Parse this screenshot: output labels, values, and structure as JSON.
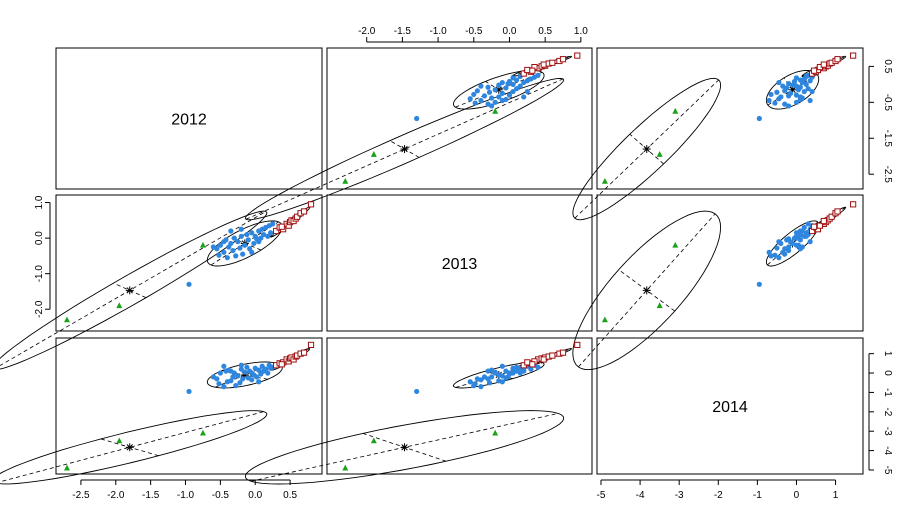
{
  "chart_data": {
    "type": "scatter",
    "variables": [
      "2012",
      "2013",
      "2014"
    ],
    "colors": {
      "group1": "#2e86de",
      "group2": "#1aa31a",
      "group3": "#a01010",
      "ellipse": "#000000"
    },
    "ranges": {
      "2012": [
        -2.8,
        0.9
      ],
      "2013": [
        -2.5,
        1.1
      ],
      "2014": [
        -5.0,
        1.6
      ]
    },
    "ticks": {
      "2012": [
        -2.5,
        -2.0,
        -1.5,
        -1.0,
        -0.5,
        0.0,
        0.5
      ],
      "2013": [
        -2.0,
        -1.5,
        -1.0,
        -0.5,
        0.0,
        0.5,
        1.0
      ],
      "2014": [
        -5,
        -4,
        -3,
        -2,
        -1,
        0,
        1
      ]
    },
    "tick_labels": {
      "2012": [
        "-2.5",
        "-2.0",
        "-1.5",
        "-1.0",
        "-0.5",
        "0.0",
        "0.5"
      ],
      "2013_top": [
        "-2.0",
        "-1.5",
        "-1.0",
        "-0.5",
        "0.0",
        "0.5",
        "1.0"
      ],
      "2013_left": [
        "-2.0",
        "-1.0",
        "0.0",
        "1.0"
      ],
      "2013_left_values": [
        -2.0,
        -1.0,
        0.0,
        1.0
      ],
      "2014": [
        "-5",
        "-4",
        "-3",
        "-2",
        "-1",
        "0",
        "1"
      ],
      "2012_right": [
        "-2.5",
        "-1.5",
        "-0.5",
        "0.5"
      ],
      "2012_right_values": [
        -2.5,
        -1.5,
        -0.5,
        0.5
      ]
    },
    "groups": [
      {
        "id": 1,
        "marker": "circle",
        "color": "#2e86de",
        "points": [
          [
            -0.95,
            -1.3,
            -0.95
          ],
          [
            -0.55,
            -0.3,
            -0.3
          ],
          [
            -0.52,
            -0.48,
            -0.55
          ],
          [
            -0.5,
            -0.2,
            0.0
          ],
          [
            -0.45,
            -0.4,
            -0.7
          ],
          [
            -0.42,
            -0.05,
            0.1
          ],
          [
            -0.4,
            -0.55,
            -0.45
          ],
          [
            -0.38,
            -0.25,
            0.15
          ],
          [
            -0.35,
            -0.15,
            -0.4
          ],
          [
            -0.32,
            -0.35,
            -0.2
          ],
          [
            -0.3,
            0.0,
            0.0
          ],
          [
            -0.28,
            -0.5,
            -0.65
          ],
          [
            -0.25,
            -0.1,
            -0.15
          ],
          [
            -0.22,
            -0.28,
            -0.5
          ],
          [
            -0.2,
            0.05,
            0.2
          ],
          [
            -0.18,
            -0.45,
            -0.3
          ],
          [
            -0.15,
            -0.2,
            0.05
          ],
          [
            -0.12,
            0.1,
            0.3
          ],
          [
            -0.1,
            -0.05,
            -0.25
          ],
          [
            -0.08,
            -0.3,
            0.1
          ],
          [
            -0.05,
            0.15,
            0.0
          ],
          [
            -0.02,
            -0.15,
            -0.1
          ],
          [
            0.0,
            0.05,
            0.25
          ],
          [
            0.02,
            -0.02,
            -0.2
          ],
          [
            0.05,
            0.2,
            0.15
          ],
          [
            0.08,
            0.0,
            -0.05
          ],
          [
            0.1,
            0.25,
            0.35
          ],
          [
            0.12,
            0.1,
            0.1
          ],
          [
            0.15,
            0.3,
            0.2
          ],
          [
            0.18,
            0.05,
            0.0
          ],
          [
            0.2,
            0.35,
            0.4
          ],
          [
            0.22,
            0.15,
            0.25
          ],
          [
            0.25,
            0.4,
            0.3
          ],
          [
            -0.35,
            0.2,
            0.1
          ],
          [
            -0.45,
            -0.1,
            0.35
          ],
          [
            -0.2,
            0.25,
            0.4
          ],
          [
            -0.6,
            -0.25,
            -0.2
          ],
          [
            -0.05,
            -0.4,
            -0.35
          ],
          [
            0.05,
            -0.1,
            -0.45
          ]
        ]
      },
      {
        "id": 2,
        "marker": "triangle",
        "color": "#1aa31a",
        "points": [
          [
            -2.7,
            -2.3,
            -4.9
          ],
          [
            -1.95,
            -1.9,
            -3.5
          ],
          [
            -0.75,
            -0.2,
            -3.1
          ]
        ]
      },
      {
        "id": 3,
        "marker": "square",
        "color": "#a01010",
        "points": [
          [
            0.3,
            0.2,
            0.4
          ],
          [
            0.35,
            0.3,
            0.5
          ],
          [
            0.4,
            0.25,
            0.55
          ],
          [
            0.45,
            0.4,
            0.7
          ],
          [
            0.48,
            0.35,
            0.6
          ],
          [
            0.5,
            0.45,
            0.75
          ],
          [
            0.52,
            0.5,
            0.8
          ],
          [
            0.55,
            0.48,
            0.7
          ],
          [
            0.58,
            0.55,
            0.85
          ],
          [
            0.6,
            0.6,
            0.9
          ],
          [
            0.65,
            0.7,
            1.0
          ],
          [
            0.7,
            0.75,
            1.05
          ],
          [
            0.8,
            0.95,
            1.45
          ],
          [
            0.38,
            0.32,
            0.45
          ]
        ]
      }
    ],
    "centroids": [
      [
        -0.15,
        -0.15,
        -0.1
      ],
      [
        -1.8,
        -1.47,
        -3.83
      ],
      [
        0.5,
        0.45,
        0.7
      ]
    ]
  }
}
